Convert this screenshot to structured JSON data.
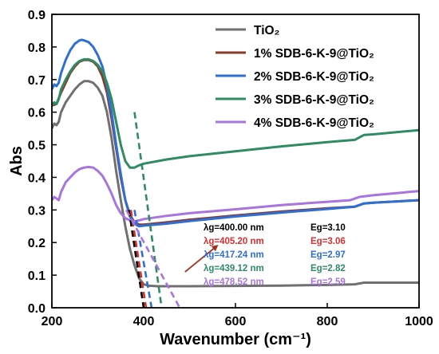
{
  "chart_data": {
    "type": "line",
    "title": "",
    "xlabel": "Wavenumber (cm⁻¹)",
    "ylabel": "Abs",
    "xlim": [
      200,
      1000
    ],
    "ylim": [
      0.0,
      0.9
    ],
    "x_ticks": [
      200,
      400,
      600,
      800,
      1000
    ],
    "y_ticks": [
      0.0,
      0.1,
      0.2,
      0.3,
      0.4,
      0.5,
      0.6,
      0.7,
      0.8,
      0.9
    ],
    "x_tick_labels": [
      "200",
      "400",
      "600",
      "800",
      "1000"
    ],
    "y_tick_labels": [
      "0.0",
      "0.1",
      "0.2",
      "0.3",
      "0.4",
      "0.5",
      "0.6",
      "0.7",
      "0.8",
      "0.9"
    ],
    "grid": false,
    "legend_position": "top-right",
    "series": [
      {
        "name": "TiO₂",
        "color": "#707070",
        "points": [
          [
            200,
            0.55
          ],
          [
            205,
            0.565
          ],
          [
            210,
            0.56
          ],
          [
            215,
            0.57
          ],
          [
            220,
            0.6
          ],
          [
            230,
            0.63
          ],
          [
            240,
            0.65
          ],
          [
            250,
            0.67
          ],
          [
            260,
            0.685
          ],
          [
            270,
            0.695
          ],
          [
            280,
            0.695
          ],
          [
            290,
            0.69
          ],
          [
            300,
            0.675
          ],
          [
            310,
            0.65
          ],
          [
            320,
            0.6
          ],
          [
            330,
            0.52
          ],
          [
            340,
            0.42
          ],
          [
            350,
            0.33
          ],
          [
            360,
            0.25
          ],
          [
            370,
            0.18
          ],
          [
            380,
            0.13
          ],
          [
            390,
            0.09
          ],
          [
            400,
            0.072
          ],
          [
            410,
            0.068
          ],
          [
            430,
            0.066
          ],
          [
            500,
            0.066
          ],
          [
            600,
            0.067
          ],
          [
            700,
            0.068
          ],
          [
            800,
            0.07
          ],
          [
            860,
            0.072
          ],
          [
            880,
            0.077
          ],
          [
            900,
            0.077
          ],
          [
            1000,
            0.077
          ]
        ]
      },
      {
        "name": "1% SDB-6-K-9@TiO₂",
        "color": "#8b3a2a",
        "points": [
          [
            200,
            0.62
          ],
          [
            210,
            0.625
          ],
          [
            220,
            0.66
          ],
          [
            230,
            0.69
          ],
          [
            240,
            0.72
          ],
          [
            250,
            0.74
          ],
          [
            260,
            0.755
          ],
          [
            270,
            0.76
          ],
          [
            280,
            0.76
          ],
          [
            290,
            0.755
          ],
          [
            300,
            0.74
          ],
          [
            310,
            0.71
          ],
          [
            320,
            0.66
          ],
          [
            330,
            0.58
          ],
          [
            340,
            0.49
          ],
          [
            350,
            0.4
          ],
          [
            360,
            0.33
          ],
          [
            370,
            0.285
          ],
          [
            380,
            0.262
          ],
          [
            390,
            0.255
          ],
          [
            400,
            0.255
          ],
          [
            450,
            0.262
          ],
          [
            500,
            0.27
          ],
          [
            600,
            0.283
          ],
          [
            700,
            0.295
          ],
          [
            800,
            0.305
          ],
          [
            860,
            0.31
          ],
          [
            880,
            0.32
          ],
          [
            900,
            0.322
          ],
          [
            1000,
            0.33
          ]
        ]
      },
      {
        "name": "2% SDB-6-K-9@TiO₂",
        "color": "#2e6fd6",
        "points": [
          [
            200,
            0.67
          ],
          [
            205,
            0.685
          ],
          [
            210,
            0.68
          ],
          [
            215,
            0.69
          ],
          [
            220,
            0.72
          ],
          [
            230,
            0.76
          ],
          [
            240,
            0.79
          ],
          [
            250,
            0.81
          ],
          [
            260,
            0.82
          ],
          [
            265,
            0.822
          ],
          [
            270,
            0.82
          ],
          [
            280,
            0.815
          ],
          [
            290,
            0.8
          ],
          [
            300,
            0.775
          ],
          [
            310,
            0.74
          ],
          [
            320,
            0.68
          ],
          [
            330,
            0.6
          ],
          [
            340,
            0.5
          ],
          [
            350,
            0.41
          ],
          [
            360,
            0.33
          ],
          [
            370,
            0.28
          ],
          [
            380,
            0.258
          ],
          [
            390,
            0.25
          ],
          [
            400,
            0.252
          ],
          [
            450,
            0.258
          ],
          [
            500,
            0.266
          ],
          [
            600,
            0.28
          ],
          [
            700,
            0.292
          ],
          [
            800,
            0.303
          ],
          [
            860,
            0.31
          ],
          [
            880,
            0.32
          ],
          [
            900,
            0.322
          ],
          [
            1000,
            0.33
          ]
        ]
      },
      {
        "name": "3% SDB-6-K-9@TiO₂",
        "color": "#2e8b63",
        "points": [
          [
            200,
            0.62
          ],
          [
            205,
            0.63
          ],
          [
            210,
            0.625
          ],
          [
            215,
            0.64
          ],
          [
            220,
            0.67
          ],
          [
            230,
            0.7
          ],
          [
            240,
            0.725
          ],
          [
            250,
            0.745
          ],
          [
            260,
            0.757
          ],
          [
            270,
            0.762
          ],
          [
            280,
            0.762
          ],
          [
            290,
            0.757
          ],
          [
            300,
            0.745
          ],
          [
            310,
            0.725
          ],
          [
            320,
            0.69
          ],
          [
            330,
            0.64
          ],
          [
            340,
            0.57
          ],
          [
            350,
            0.5
          ],
          [
            360,
            0.45
          ],
          [
            370,
            0.43
          ],
          [
            380,
            0.43
          ],
          [
            390,
            0.437
          ],
          [
            400,
            0.442
          ],
          [
            450,
            0.455
          ],
          [
            500,
            0.465
          ],
          [
            600,
            0.48
          ],
          [
            700,
            0.495
          ],
          [
            800,
            0.508
          ],
          [
            860,
            0.515
          ],
          [
            880,
            0.53
          ],
          [
            900,
            0.532
          ],
          [
            1000,
            0.545
          ]
        ]
      },
      {
        "name": "4% SDB-6-K-9@TiO₂",
        "color": "#a774e0",
        "points": [
          [
            200,
            0.33
          ],
          [
            205,
            0.34
          ],
          [
            210,
            0.335
          ],
          [
            215,
            0.33
          ],
          [
            220,
            0.355
          ],
          [
            230,
            0.385
          ],
          [
            240,
            0.4
          ],
          [
            250,
            0.415
          ],
          [
            260,
            0.425
          ],
          [
            270,
            0.43
          ],
          [
            280,
            0.432
          ],
          [
            290,
            0.43
          ],
          [
            300,
            0.42
          ],
          [
            310,
            0.405
          ],
          [
            320,
            0.38
          ],
          [
            330,
            0.35
          ],
          [
            340,
            0.315
          ],
          [
            350,
            0.29
          ],
          [
            360,
            0.275
          ],
          [
            370,
            0.268
          ],
          [
            380,
            0.265
          ],
          [
            390,
            0.268
          ],
          [
            400,
            0.272
          ],
          [
            450,
            0.282
          ],
          [
            500,
            0.29
          ],
          [
            600,
            0.302
          ],
          [
            700,
            0.315
          ],
          [
            800,
            0.325
          ],
          [
            850,
            0.33
          ],
          [
            870,
            0.34
          ],
          [
            900,
            0.345
          ],
          [
            1000,
            0.358
          ]
        ]
      }
    ],
    "tangent_lines": [
      {
        "color": "#000000",
        "from": [
          368,
          0.3
        ],
        "to": [
          400,
          0.0
        ]
      },
      {
        "color": "#d62f2f",
        "from": [
          372,
          0.3
        ],
        "to": [
          405.2,
          0.0
        ]
      },
      {
        "color": "#2e6fd6",
        "from": [
          380,
          0.3
        ],
        "to": [
          417.24,
          0.0
        ]
      },
      {
        "color": "#2e8b63",
        "from": [
          380,
          0.6
        ],
        "to": [
          439.12,
          0.0
        ]
      },
      {
        "color": "#a774e0",
        "from": [
          362,
          0.3
        ],
        "to": [
          478.52,
          0.0
        ]
      }
    ],
    "arrow": {
      "color": "#a0301e",
      "from": [
        490,
        0.11
      ],
      "to": [
        560,
        0.19
      ]
    },
    "annotations": [
      {
        "lambda": "λg=400.00 nm",
        "eg": "Eg=3.10",
        "color": "#000000"
      },
      {
        "lambda": "λg=405.20 nm",
        "eg": "Eg=3.06",
        "color": "#d62f2f"
      },
      {
        "lambda": "λg=417.24 nm",
        "eg": "Eg=2.97",
        "color": "#2e6fd6"
      },
      {
        "lambda": "λg=439.12 nm",
        "eg": "Eg=2.82",
        "color": "#2e8b63"
      },
      {
        "lambda": "λg=478.52 nm",
        "eg": "Eg=2.59",
        "color": "#a774e0"
      }
    ]
  }
}
